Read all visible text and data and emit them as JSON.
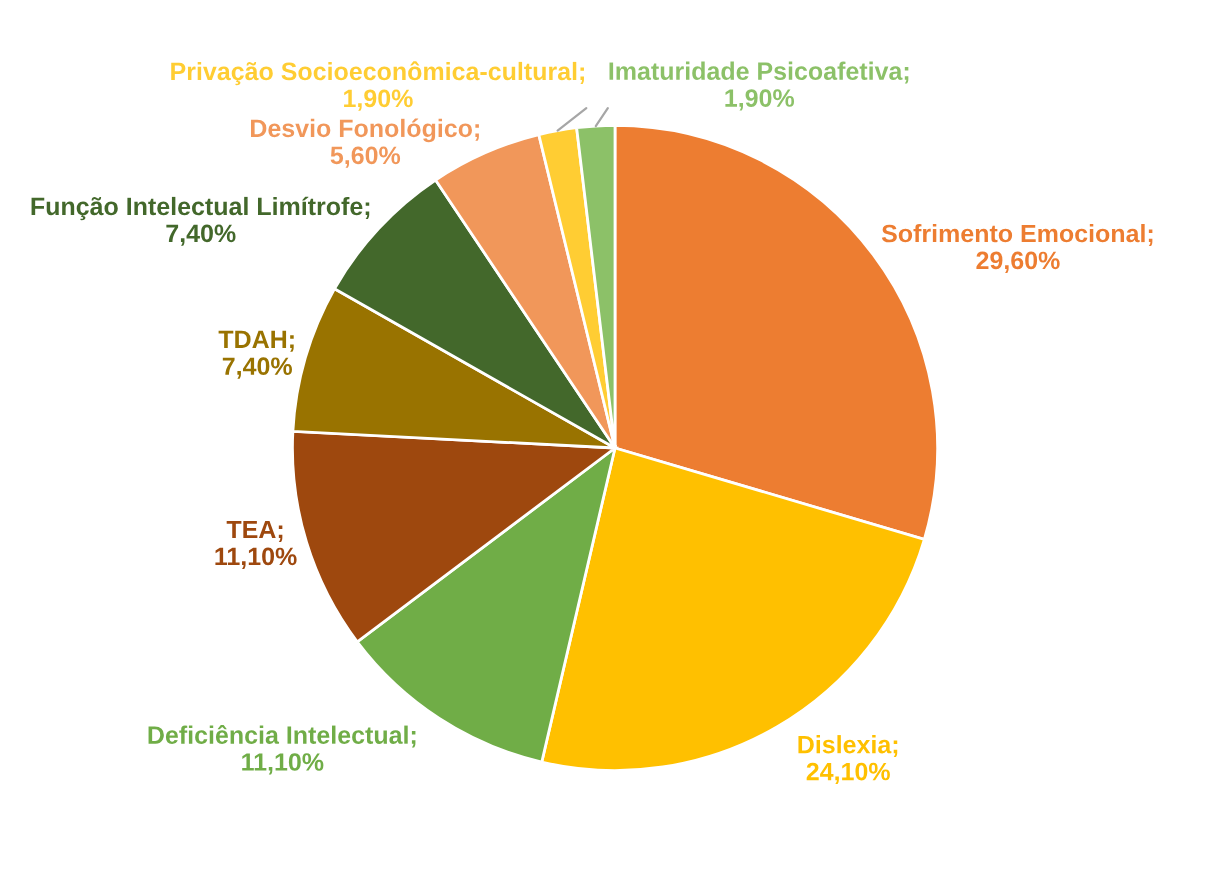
{
  "chart_data": {
    "type": "pie",
    "categories": [
      "Sofrimento Emocional; 29,60%",
      "Dislexia; 24,10%",
      "Deficiência Intelectual; 11,10%",
      "TEA; 11,10%",
      "TDAH; 7,40%",
      "Função Intelectual Limítrofe; 7,40%",
      "Desvio Fonológico; 5,60%",
      "Privação Socioeconômica-cultural; 1,90%",
      "Imaturidade Psicoafetiva; 1,90%"
    ],
    "values": [
      29.6,
      24.1,
      11.1,
      11.1,
      7.4,
      7.4,
      5.6,
      1.9,
      1.9
    ],
    "colors": [
      "#ed7d31",
      "#ffc000",
      "#70ad47",
      "#9e480e",
      "#997300",
      "#43682b",
      "#f1975a",
      "#ffcd33",
      "#8cc168"
    ]
  }
}
